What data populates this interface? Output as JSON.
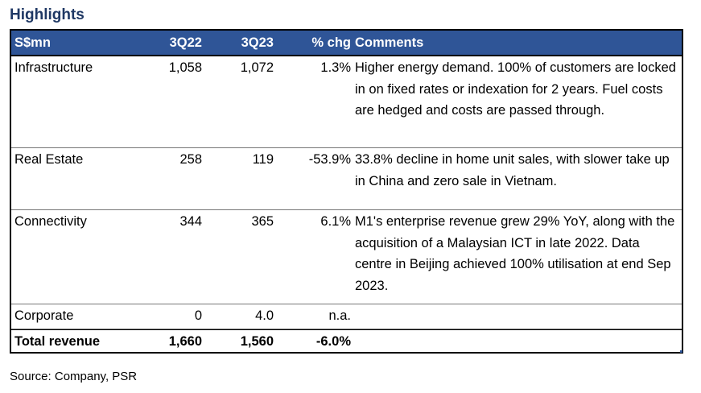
{
  "title": "Highlights",
  "header": {
    "col1": "S$mn",
    "col2": "3Q22",
    "col3": "3Q23",
    "col4": "% chg",
    "col5": "Comments"
  },
  "rows": [
    {
      "segment": "Infrastructure",
      "q22": "1,058",
      "q23": "1,072",
      "chg": "1.3%",
      "comment": "Higher energy demand. 100% of customers are locked in on fixed rates or indexation for 2 years. Fuel costs are hedged and costs are passed through."
    },
    {
      "segment": "Real Estate",
      "q22": "258",
      "q23": "119",
      "chg": "-53.9%",
      "comment": "33.8% decline in home unit sales, with slower take up in China and zero sale in Vietnam."
    },
    {
      "segment": "Connectivity",
      "q22": "344",
      "q23": "365",
      "chg": "6.1%",
      "comment": "M1's enterprise revenue grew 29% YoY, along with the acquisition of a Malaysian ICT in late 2022. Data centre in Beijing achieved 100% utilisation at end Sep 2023."
    },
    {
      "segment": "Corporate",
      "q22": "0",
      "q23": "4.0",
      "chg": "n.a.",
      "comment": ""
    }
  ],
  "total": {
    "segment": "Total revenue",
    "q22": "1,660",
    "q23": "1,560",
    "chg": "-6.0%",
    "comment": ""
  },
  "source": "Source: Company, PSR",
  "colors": {
    "title": "#1f3864",
    "header_bg": "#2f5597",
    "header_text": "#ffffff"
  }
}
